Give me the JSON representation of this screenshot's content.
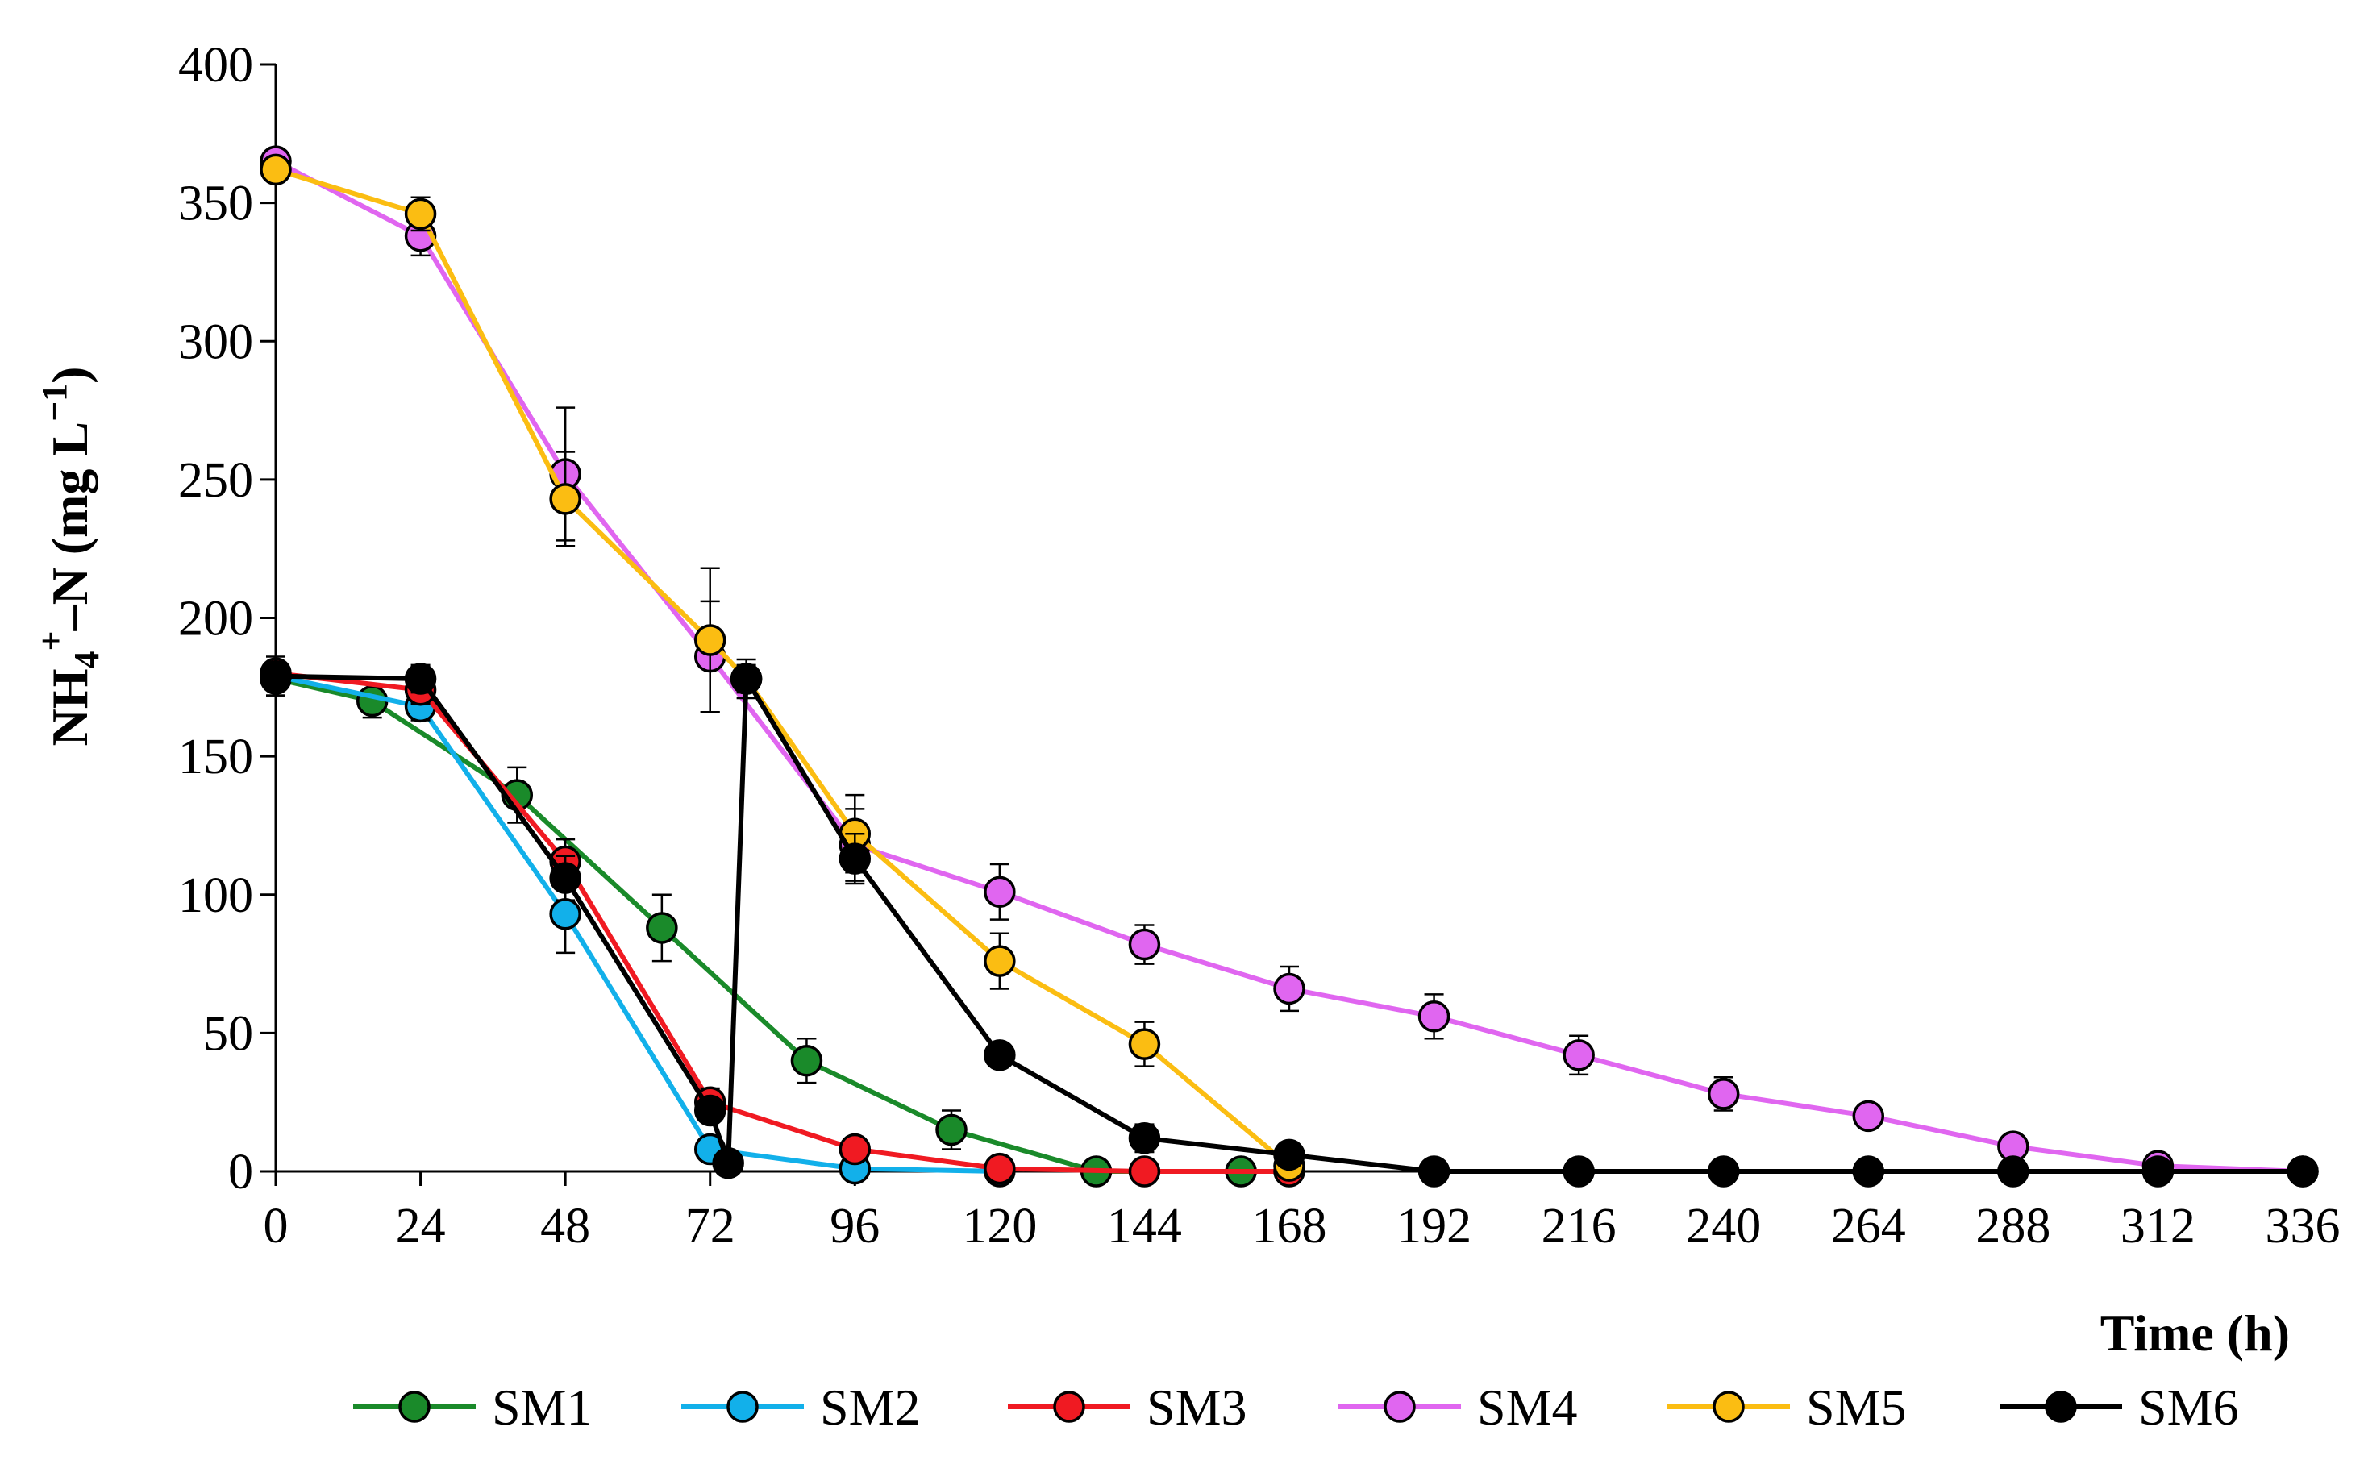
{
  "chart_data": {
    "type": "line",
    "title": "",
    "xlabel": "Time (h)",
    "ylabel": "NH4+–N (mg L−1)",
    "ylabel_parts": {
      "main": "NH",
      "sub": "4",
      "sup1": "+",
      "mid": "–N (mg L",
      "sup2": "−1",
      "end": ")"
    },
    "xlim": [
      0,
      336
    ],
    "ylim": [
      0,
      400
    ],
    "xticks": [
      "0",
      "24",
      "48",
      "72",
      "96",
      "120",
      "144",
      "168",
      "192",
      "216",
      "240",
      "264",
      "288",
      "312",
      "336"
    ],
    "yticks": [
      "0",
      "50",
      "100",
      "150",
      "200",
      "250",
      "300",
      "350",
      "400"
    ],
    "grid": false,
    "legend_position": "bottom",
    "series": [
      {
        "name": "SM1",
        "color": "#1a8a2a",
        "x": [
          0,
          16,
          40,
          64,
          88,
          112,
          136,
          160
        ],
        "y": [
          178,
          170,
          136,
          88,
          40,
          15,
          0,
          0
        ],
        "err": [
          6,
          6,
          10,
          12,
          8,
          7,
          0,
          0
        ]
      },
      {
        "name": "SM2",
        "color": "#12b0ea",
        "x": [
          0,
          24,
          48,
          72,
          96,
          120
        ],
        "y": [
          179,
          168,
          93,
          8,
          1,
          0
        ],
        "err": [
          4,
          5,
          14,
          4,
          0,
          0
        ]
      },
      {
        "name": "SM3",
        "color": "#f01a22",
        "x": [
          0,
          24,
          48,
          72,
          96,
          120,
          144,
          168
        ],
        "y": [
          180,
          174,
          112,
          25,
          8,
          1,
          0,
          0
        ],
        "err": [
          4,
          5,
          8,
          5,
          3,
          0,
          0,
          0
        ]
      },
      {
        "name": "SM4",
        "color": "#e066f0",
        "x": [
          0,
          24,
          48,
          72,
          96,
          120,
          144,
          168,
          192,
          216,
          240,
          264,
          288,
          312,
          336
        ],
        "y": [
          365,
          338,
          252,
          186,
          118,
          101,
          82,
          66,
          56,
          42,
          28,
          20,
          9,
          2,
          0
        ],
        "err": [
          3,
          7,
          24,
          20,
          13,
          10,
          7,
          8,
          8,
          7,
          6,
          3,
          3,
          2,
          0
        ]
      },
      {
        "name": "SM5",
        "color": "#fbbd12",
        "x": [
          0,
          24,
          48,
          72,
          78,
          96,
          120,
          144,
          168
        ],
        "y": [
          362,
          346,
          243,
          192,
          178,
          122,
          76,
          46,
          2
        ],
        "err": [
          3,
          6,
          17,
          26,
          5,
          14,
          10,
          8,
          0
        ]
      },
      {
        "name": "SM6",
        "color": "#000000",
        "x": [
          0,
          24,
          48,
          72,
          75,
          78,
          96,
          120,
          144,
          168,
          192,
          216,
          240,
          264,
          288,
          312,
          336
        ],
        "y": [
          179,
          178,
          106,
          22,
          3,
          178,
          113,
          42,
          12,
          6,
          0,
          0,
          0,
          0,
          0,
          0,
          0
        ],
        "err": [
          7,
          5,
          8,
          4,
          0,
          7,
          9,
          4,
          5,
          3,
          0,
          0,
          0,
          0,
          0,
          0,
          0
        ]
      }
    ]
  }
}
